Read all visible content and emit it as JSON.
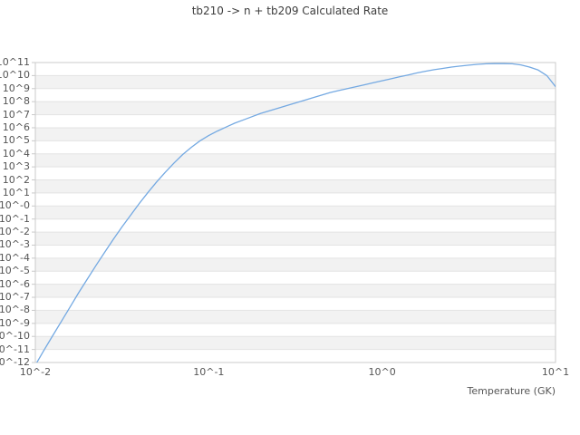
{
  "title": "tb210 -> n + tb209 Calculated Rate",
  "x_axis": {
    "label": "Temperature (GK)",
    "ticks": [
      "10^-2",
      "10^-1",
      "10^0",
      "10^1"
    ]
  },
  "y_axis": {
    "ticks": [
      "10^11",
      "10^10",
      "10^9",
      "10^8",
      "10^7",
      "10^6",
      "10^5",
      "10^4",
      "10^3",
      "10^2",
      "10^1",
      "10^-0",
      "10^-1",
      "10^-2",
      "10^-3",
      "10^-4",
      "10^-5",
      "10^-6",
      "10^-7",
      "10^-8",
      "10^-9",
      "10^-10",
      "10^-11",
      "10^-12"
    ]
  },
  "chart_data": {
    "type": "line",
    "title": "tb210 -> n + tb209 Calculated Rate",
    "xlabel": "Temperature (GK)",
    "ylabel": "",
    "x_scale": "log",
    "y_scale": "log",
    "xlim_log10": [
      -2,
      1
    ],
    "ylim_log10": [
      -12,
      11
    ],
    "x_tick_labels": [
      "10^-2",
      "10^-1",
      "10^0",
      "10^1"
    ],
    "y_tick_labels": [
      "10^11",
      "10^10",
      "10^9",
      "10^8",
      "10^7",
      "10^6",
      "10^5",
      "10^4",
      "10^3",
      "10^2",
      "10^1",
      "10^-0",
      "10^-1",
      "10^-2",
      "10^-3",
      "10^-4",
      "10^-5",
      "10^-6",
      "10^-7",
      "10^-8",
      "10^-9",
      "10^-10",
      "10^-11",
      "10^-12"
    ],
    "grid": "horizontal-striped-bands",
    "legend": "none",
    "series": [
      {
        "name": "calculated-rate",
        "points_log10_T_log10_rate": [
          [
            -2.0,
            -12.2
          ],
          [
            -1.95,
            -11.05
          ],
          [
            -1.9,
            -9.95
          ],
          [
            -1.85,
            -8.85
          ],
          [
            -1.8,
            -7.75
          ],
          [
            -1.75,
            -6.65
          ],
          [
            -1.7,
            -5.6
          ],
          [
            -1.65,
            -4.55
          ],
          [
            -1.6,
            -3.55
          ],
          [
            -1.55,
            -2.55
          ],
          [
            -1.5,
            -1.6
          ],
          [
            -1.45,
            -0.7
          ],
          [
            -1.4,
            0.2
          ],
          [
            -1.35,
            1.05
          ],
          [
            -1.3,
            1.85
          ],
          [
            -1.25,
            2.6
          ],
          [
            -1.2,
            3.3
          ],
          [
            -1.15,
            3.95
          ],
          [
            -1.1,
            4.5
          ],
          [
            -1.05,
            5.0
          ],
          [
            -1.0,
            5.4
          ],
          [
            -0.95,
            5.75
          ],
          [
            -0.9,
            6.05
          ],
          [
            -0.85,
            6.35
          ],
          [
            -0.8,
            6.6
          ],
          [
            -0.75,
            6.85
          ],
          [
            -0.7,
            7.1
          ],
          [
            -0.65,
            7.3
          ],
          [
            -0.6,
            7.5
          ],
          [
            -0.55,
            7.7
          ],
          [
            -0.5,
            7.9
          ],
          [
            -0.45,
            8.1
          ],
          [
            -0.4,
            8.3
          ],
          [
            -0.35,
            8.5
          ],
          [
            -0.3,
            8.7
          ],
          [
            -0.25,
            8.85
          ],
          [
            -0.2,
            9.0
          ],
          [
            -0.15,
            9.15
          ],
          [
            -0.1,
            9.3
          ],
          [
            -0.05,
            9.45
          ],
          [
            0.0,
            9.6
          ],
          [
            0.05,
            9.75
          ],
          [
            0.1,
            9.9
          ],
          [
            0.15,
            10.05
          ],
          [
            0.2,
            10.2
          ],
          [
            0.25,
            10.33
          ],
          [
            0.3,
            10.45
          ],
          [
            0.35,
            10.55
          ],
          [
            0.4,
            10.65
          ],
          [
            0.45,
            10.73
          ],
          [
            0.5,
            10.8
          ],
          [
            0.55,
            10.86
          ],
          [
            0.6,
            10.9
          ],
          [
            0.65,
            10.92
          ],
          [
            0.7,
            10.92
          ],
          [
            0.75,
            10.9
          ],
          [
            0.8,
            10.82
          ],
          [
            0.85,
            10.65
          ],
          [
            0.9,
            10.42
          ],
          [
            0.95,
            10.0
          ],
          [
            1.0,
            9.15
          ]
        ]
      }
    ],
    "colors": {
      "line": "#74a9e2",
      "band_fill": "#f2f2f2",
      "gridline": "#e3e3e3",
      "border": "#cbcbcb",
      "tick_mark": "#c9c9c9",
      "tick_text": "#555555",
      "title_text": "#3d3d3d"
    }
  }
}
